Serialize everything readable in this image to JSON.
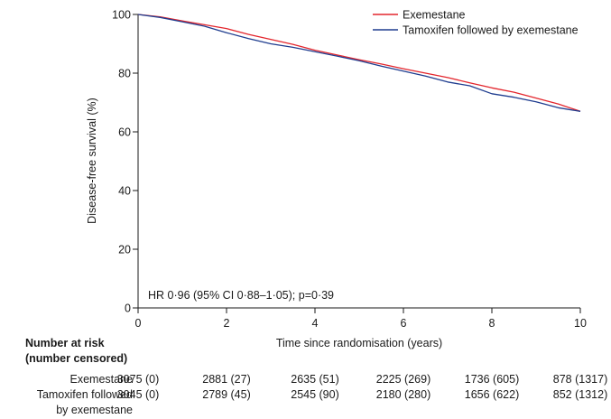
{
  "chart_data": {
    "type": "line",
    "xlabel": "Time since randomisation (years)",
    "ylabel": "Disease-free survival (%)",
    "xlim": [
      0,
      10
    ],
    "ylim": [
      0,
      100
    ],
    "x_ticks": [
      "0",
      "2",
      "4",
      "6",
      "8",
      "10"
    ],
    "y_ticks": [
      "0",
      "20",
      "40",
      "60",
      "80",
      "100"
    ],
    "grid": false,
    "legend_position": "top-right",
    "annotation": "HR 0·96 (95% CI 0·88–1·05); p=0·39",
    "series": [
      {
        "name": "Exemestane",
        "color": "#e3262d",
        "x": [
          0,
          0.5,
          1,
          1.5,
          2,
          2.5,
          3,
          3.5,
          4,
          4.5,
          5,
          5.5,
          6,
          6.5,
          7,
          7.5,
          8,
          8.5,
          9,
          9.5,
          10
        ],
        "y": [
          100,
          99.2,
          97.8,
          96.5,
          95.2,
          93.2,
          91.5,
          89.8,
          87.8,
          86.2,
          84.6,
          83.1,
          81.5,
          80.0,
          78.5,
          76.7,
          75.0,
          73.5,
          71.5,
          69.5,
          67.0
        ]
      },
      {
        "name": "Tamoxifen followed by exemestane",
        "color": "#1f3d8f",
        "x": [
          0,
          0.5,
          1,
          1.5,
          2,
          2.5,
          3,
          3.5,
          4,
          4.5,
          5,
          5.5,
          6,
          6.5,
          7,
          7.5,
          8,
          8.5,
          9,
          9.5,
          10
        ],
        "y": [
          100,
          99.0,
          97.5,
          96.0,
          93.8,
          91.8,
          90.0,
          88.8,
          87.3,
          85.8,
          84.2,
          82.4,
          80.7,
          79.0,
          77.0,
          75.7,
          73.0,
          71.8,
          70.2,
          68.2,
          67.0
        ]
      }
    ]
  },
  "risk_table": {
    "title": "Number at risk\n(number censored)",
    "x_values": [
      0,
      2,
      4,
      6,
      8,
      10
    ],
    "rows": [
      {
        "label": "Exemestane",
        "cells": [
          "3075 (0)",
          "2881 (27)",
          "2635 (51)",
          "2225 (269)",
          "1736 (605)",
          "878 (1317)"
        ]
      },
      {
        "label": "Tamoxifen followed\nby exemestane",
        "cells": [
          "3045 (0)",
          "2789 (45)",
          "2545 (90)",
          "2180 (280)",
          "1656 (622)",
          "852 (1312)"
        ]
      }
    ]
  }
}
